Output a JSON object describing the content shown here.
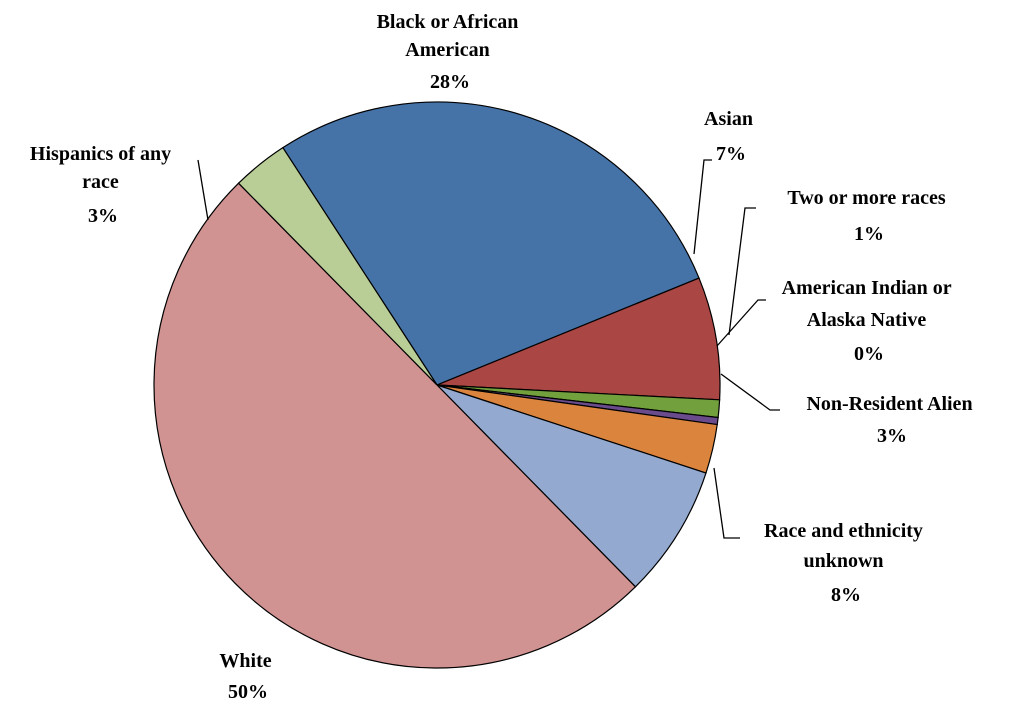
{
  "chart_data": {
    "type": "pie",
    "title": "",
    "start_angle_deg": 147,
    "direction": "clockwise",
    "slices": [
      {
        "name": "Black or African American",
        "label_lines": [
          "Black or African",
          "American"
        ],
        "pct_label": "28%",
        "value": 28,
        "color": "#4572A7"
      },
      {
        "name": "Asian",
        "label_lines": [
          "Asian"
        ],
        "pct_label": "7%",
        "value": 7,
        "color": "#AA4643"
      },
      {
        "name": "Two or more races",
        "label_lines": [
          "Two or more races"
        ],
        "pct_label": "1%",
        "value": 1,
        "color": "#71A03D"
      },
      {
        "name": "American Indian or Alaska Native",
        "label_lines": [
          "American Indian or",
          "Alaska Native"
        ],
        "pct_label": "0%",
        "value": 0.4,
        "color": "#6A4C8C"
      },
      {
        "name": "Non-Resident Alien",
        "label_lines": [
          "Non-Resident Alien"
        ],
        "pct_label": "3%",
        "value": 2.8,
        "color": "#DB843D"
      },
      {
        "name": "Race and ethnicity unknown",
        "label_lines": [
          "Race and ethnicity",
          "unknown"
        ],
        "pct_label": "8%",
        "value": 7.6,
        "color": "#93A9CF"
      },
      {
        "name": "White",
        "label_lines": [
          "White"
        ],
        "pct_label": "50%",
        "value": 50,
        "color": "#D19392"
      },
      {
        "name": "Hispanics of any race",
        "label_lines": [
          "Hispanics of any",
          "race"
        ],
        "pct_label": "3%",
        "value": 3.2,
        "color": "#B9CD96"
      }
    ]
  }
}
